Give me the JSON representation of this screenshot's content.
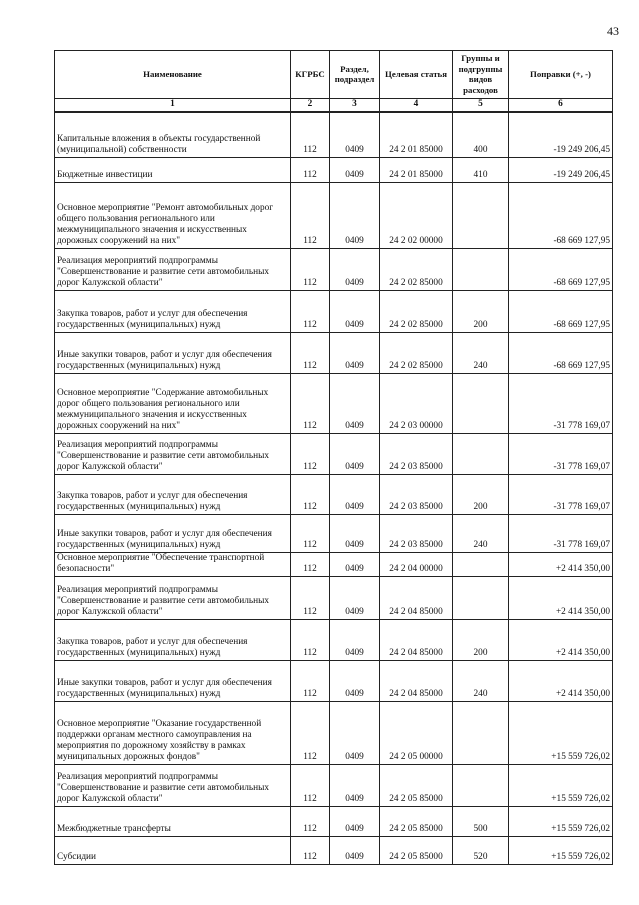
{
  "page_number": "43",
  "headers": [
    "Наименование",
    "КГРБС",
    "Раздел, подраздел",
    "Целевая статья",
    "Группы и подгруппы видов расходов",
    "Поправки (+, -)"
  ],
  "column_numbers": [
    "1",
    "2",
    "3",
    "4",
    "5",
    "6"
  ],
  "rows": [
    {
      "name": "Капитальные вложения в объекты государственной (муниципальной) собственности",
      "kgrbs": "112",
      "section": "0409",
      "target": "24 2 01 85000",
      "group": "400",
      "amount": "-19 249 206,45"
    },
    {
      "name": "Бюджетные инвестиции",
      "kgrbs": "112",
      "section": "0409",
      "target": "24 2 01 85000",
      "group": "410",
      "amount": "-19 249 206,45"
    },
    {
      "name": "Основное мероприятие \"Ремонт автомобильных дорог общего пользования регионального или межмуниципального значения и искусственных дорожных сооружений на них\"",
      "kgrbs": "112",
      "section": "0409",
      "target": "24 2 02 00000",
      "group": "",
      "amount": "-68 669 127,95"
    },
    {
      "name": "Реализация мероприятий подпрограммы \"Совершенствование и развитие сети автомобильных дорог Калужской области\"",
      "kgrbs": "112",
      "section": "0409",
      "target": "24 2 02 85000",
      "group": "",
      "amount": "-68 669 127,95"
    },
    {
      "name": "Закупка товаров, работ и услуг для обеспечения государственных (муниципальных) нужд",
      "kgrbs": "112",
      "section": "0409",
      "target": "24 2 02 85000",
      "group": "200",
      "amount": "-68 669 127,95"
    },
    {
      "name": "Иные закупки товаров, работ и услуг для обеспечения государственных (муниципальных) нужд",
      "kgrbs": "112",
      "section": "0409",
      "target": "24 2 02 85000",
      "group": "240",
      "amount": "-68 669 127,95"
    },
    {
      "name": "Основное мероприятие \"Содержание автомобильных дорог общего пользования регионального или межмуниципального значения и искусственных дорожных сооружений на них\"",
      "kgrbs": "112",
      "section": "0409",
      "target": "24 2 03 00000",
      "group": "",
      "amount": "-31 778 169,07"
    },
    {
      "name": "Реализация мероприятий подпрограммы \"Совершенствование и развитие сети автомобильных дорог Калужской области\"",
      "kgrbs": "112",
      "section": "0409",
      "target": "24 2 03 85000",
      "group": "",
      "amount": "-31 778 169,07"
    },
    {
      "name": "Закупка товаров, работ и услуг для обеспечения государственных (муниципальных) нужд",
      "kgrbs": "112",
      "section": "0409",
      "target": "24 2 03 85000",
      "group": "200",
      "amount": "-31 778 169,07"
    },
    {
      "name": "Иные закупки товаров, работ и услуг для обеспечения государственных (муниципальных) нужд",
      "kgrbs": "112",
      "section": "0409",
      "target": "24 2 03 85000",
      "group": "240",
      "amount": "-31 778 169,07"
    },
    {
      "name": "Основное мероприятие \"Обеспечение транспортной безопасности\"",
      "kgrbs": "112",
      "section": "0409",
      "target": "24 2 04 00000",
      "group": "",
      "amount": "+2 414 350,00"
    },
    {
      "name": "Реализация мероприятий подпрограммы \"Совершенствование и развитие сети автомобильных дорог Калужской области\"",
      "kgrbs": "112",
      "section": "0409",
      "target": "24 2 04 85000",
      "group": "",
      "amount": "+2 414 350,00"
    },
    {
      "name": "Закупка товаров, работ и услуг для обеспечения государственных (муниципальных) нужд",
      "kgrbs": "112",
      "section": "0409",
      "target": "24 2 04 85000",
      "group": "200",
      "amount": "+2 414 350,00"
    },
    {
      "name": "Иные закупки товаров, работ и услуг для обеспечения государственных (муниципальных) нужд",
      "kgrbs": "112",
      "section": "0409",
      "target": "24 2 04 85000",
      "group": "240",
      "amount": "+2 414 350,00"
    },
    {
      "name": "Основное мероприятие \"Оказание государственной поддержки органам местного самоуправления на мероприятия по дорожному хозяйству в рамках муниципальных дорожных фондов\"",
      "kgrbs": "112",
      "section": "0409",
      "target": "24 2 05 00000",
      "group": "",
      "amount": "+15 559 726,02"
    },
    {
      "name": "Реализация мероприятий подпрограммы \"Совершенствование и развитие сети автомобильных дорог Калужской области\"",
      "kgrbs": "112",
      "section": "0409",
      "target": "24 2 05 85000",
      "group": "",
      "amount": "+15 559 726,02"
    },
    {
      "name": "Межбюджетные трансферты",
      "kgrbs": "112",
      "section": "0409",
      "target": "24 2 05 85000",
      "group": "500",
      "amount": "+15 559 726,02"
    },
    {
      "name": "Субсидии",
      "kgrbs": "112",
      "section": "0409",
      "target": "24 2 05 85000",
      "group": "520",
      "amount": "+15 559 726,02"
    }
  ]
}
